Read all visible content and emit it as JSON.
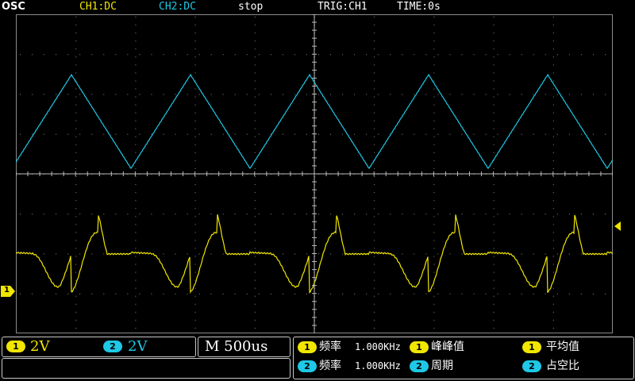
{
  "status_bar": {
    "logo": "OSC",
    "ch1_coupling": "CH1:DC",
    "ch2_coupling": "CH2:DC",
    "run_state": "stop",
    "trigger": "TRIG:CH1",
    "time_offset": "TIME:0s"
  },
  "colors": {
    "ch1": "#f0e600",
    "ch2": "#1ec8e6",
    "grid": "#8a8a8a",
    "background": "#000000"
  },
  "scale": {
    "ch1_badge": "1",
    "ch1_volts": "2V",
    "ch2_badge": "2",
    "ch2_volts": "2V",
    "timebase": "M 500us"
  },
  "measurements": {
    "row1": [
      {
        "badge": "1",
        "label": "频率",
        "value": "1.000KHz"
      },
      {
        "badge": "1",
        "label": "峰峰值",
        "value": ""
      },
      {
        "badge": "1",
        "label": "平均值",
        "value": ""
      }
    ],
    "row2": [
      {
        "badge": "2",
        "label": "频率",
        "value": "1.000KHz"
      },
      {
        "badge": "2",
        "label": "周期",
        "value": ""
      },
      {
        "badge": "2",
        "label": "占空比",
        "value": ""
      }
    ]
  },
  "markers": {
    "ch1_ground_badge": "1",
    "trigger_level_icon": "triangle-left-icon"
  }
}
